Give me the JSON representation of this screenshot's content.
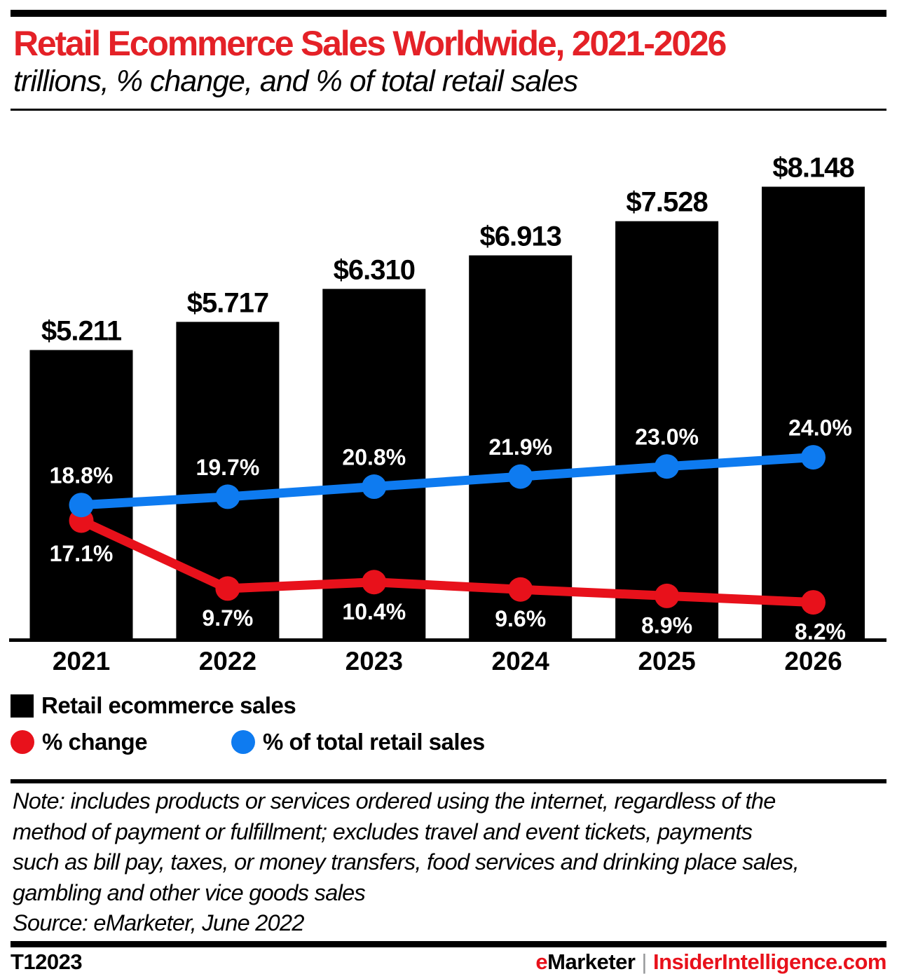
{
  "header": {
    "title": "Retail Ecommerce Sales Worldwide, 2021-2026",
    "subtitle": "trillions, % change, and % of total retail sales"
  },
  "chart_data": {
    "type": "bar",
    "subtype": "bar-with-two-line-overlays",
    "categories": [
      "2021",
      "2022",
      "2023",
      "2024",
      "2025",
      "2026"
    ],
    "series": [
      {
        "name": "Retail ecommerce sales",
        "kind": "bar",
        "unit": "trillions of US dollars",
        "color": "#000000",
        "values": [
          5.211,
          5.717,
          6.31,
          6.913,
          7.528,
          8.148
        ],
        "labels": [
          "$5.211",
          "$5.717",
          "$6.310",
          "$6.913",
          "$7.528",
          "$8.148"
        ]
      },
      {
        "name": "% change",
        "kind": "line",
        "color": "#e8111b",
        "values": [
          17.1,
          9.7,
          10.4,
          9.6,
          8.9,
          8.2
        ],
        "labels": [
          "17.1%",
          "9.7%",
          "10.4%",
          "9.6%",
          "8.9%",
          "8.2%"
        ]
      },
      {
        "name": "% of total retail sales",
        "kind": "line",
        "color": "#0e7bf0",
        "values": [
          18.8,
          19.7,
          20.8,
          21.9,
          23.0,
          24.0
        ],
        "labels": [
          "18.8%",
          "19.7%",
          "20.8%",
          "21.9%",
          "23.0%",
          "24.0%"
        ]
      }
    ],
    "bar_axis_range": [
      0,
      8.6
    ],
    "percent_axis_visible": false,
    "grid": false,
    "legend_position": "bottom-left",
    "value_label_color_bars": "#000000",
    "value_label_color_lines": "#ffffff"
  },
  "note_lines": [
    "Note: includes products or services ordered using the internet, regardless of the",
    "method of payment or fulfillment; excludes travel and event tickets, payments",
    "such as bill pay, taxes, or money transfers, food services and drinking place sales,",
    "gambling and other vice goods sales"
  ],
  "source_line": "Source: eMarketer, June 2022",
  "footer": {
    "code": "T12023",
    "brand_first_letter": "e",
    "brand_rest": "Marketer",
    "divider": "|",
    "site": "InsiderIntelligence.com"
  },
  "colors": {
    "title_red": "#e42127",
    "line_red": "#e8111b",
    "line_blue": "#0e7bf0",
    "bar_black": "#000000",
    "site_red": "#e8111b",
    "divider_gray": "#97999b"
  }
}
